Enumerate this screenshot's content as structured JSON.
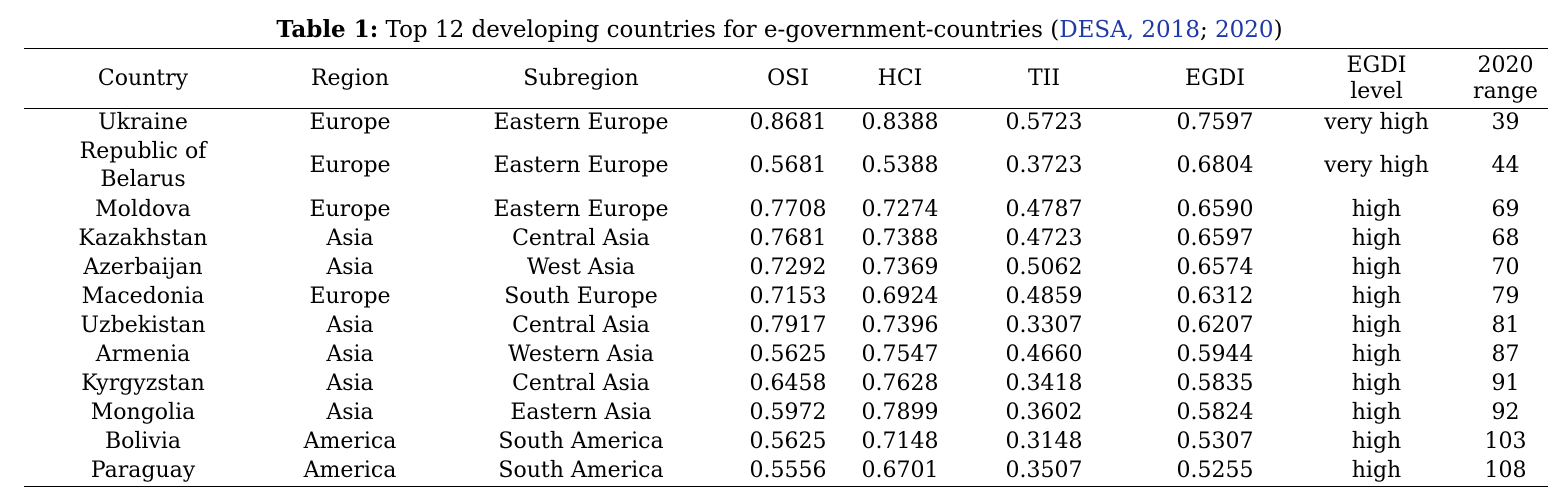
{
  "caption": {
    "label": "Table 1:",
    "text": " Top 12 developing countries for e-government-countries (",
    "cite1": "DESA, 2018",
    "sep": "; ",
    "cite2": "2020",
    "close": ")"
  },
  "table": {
    "headers": {
      "country": "Country",
      "region": "Region",
      "subregion": "Subregion",
      "osi": "OSI",
      "hci": "HCI",
      "tii": "TII",
      "egdi": "EGDI",
      "egdi_level_1": "EGDI",
      "egdi_level_2": "level",
      "range_1": "2020",
      "range_2": "range"
    },
    "rows": [
      {
        "country": "Ukraine",
        "region": "Europe",
        "subregion": "Eastern Europe",
        "osi": "0.8681",
        "hci": "0.8388",
        "tii": "0.5723",
        "egdi": "0.7597",
        "level": "very high",
        "range": "39"
      },
      {
        "country_1": "Republic of",
        "country_2": "Belarus",
        "region": "Europe",
        "subregion": "Eastern Europe",
        "osi": "0.5681",
        "hci": "0.5388",
        "tii": "0.3723",
        "egdi": "0.6804",
        "level": "very high",
        "range": "44"
      },
      {
        "country": "Moldova",
        "region": "Europe",
        "subregion": "Eastern Europe",
        "osi": "0.7708",
        "hci": "0.7274",
        "tii": "0.4787",
        "egdi": "0.6590",
        "level": "high",
        "range": "69"
      },
      {
        "country": "Kazakhstan",
        "region": "Asia",
        "subregion": "Central Asia",
        "osi": "0.7681",
        "hci": "0.7388",
        "tii": "0.4723",
        "egdi": "0.6597",
        "level": "high",
        "range": "68"
      },
      {
        "country": "Azerbaijan",
        "region": "Asia",
        "subregion": "West Asia",
        "osi": "0.7292",
        "hci": "0.7369",
        "tii": "0.5062",
        "egdi": "0.6574",
        "level": "high",
        "range": "70"
      },
      {
        "country": "Macedonia",
        "region": "Europe",
        "subregion": "South Europe",
        "osi": "0.7153",
        "hci": "0.6924",
        "tii": "0.4859",
        "egdi": "0.6312",
        "level": "high",
        "range": "79"
      },
      {
        "country": "Uzbekistan",
        "region": "Asia",
        "subregion": "Central Asia",
        "osi": "0.7917",
        "hci": "0.7396",
        "tii": "0.3307",
        "egdi": "0.6207",
        "level": "high",
        "range": "81"
      },
      {
        "country": "Armenia",
        "region": "Asia",
        "subregion": "Western Asia",
        "osi": "0.5625",
        "hci": "0.7547",
        "tii": "0.4660",
        "egdi": "0.5944",
        "level": "high",
        "range": "87"
      },
      {
        "country": "Kyrgyzstan",
        "region": "Asia",
        "subregion": "Central Asia",
        "osi": "0.6458",
        "hci": "0.7628",
        "tii": "0.3418",
        "egdi": "0.5835",
        "level": "high",
        "range": "91"
      },
      {
        "country": "Mongolia",
        "region": "Asia",
        "subregion": "Eastern Asia",
        "osi": "0.5972",
        "hci": "0.7899",
        "tii": "0.3602",
        "egdi": "0.5824",
        "level": "high",
        "range": "92"
      },
      {
        "country": "Bolivia",
        "region": "America",
        "subregion": "South America",
        "osi": "0.5625",
        "hci": "0.7148",
        "tii": "0.3148",
        "egdi": "0.5307",
        "level": "high",
        "range": "103"
      },
      {
        "country": "Paraguay",
        "region": "America",
        "subregion": "South America",
        "osi": "0.5556",
        "hci": "0.6701",
        "tii": "0.3507",
        "egdi": "0.5255",
        "level": "high",
        "range": "108"
      }
    ]
  }
}
